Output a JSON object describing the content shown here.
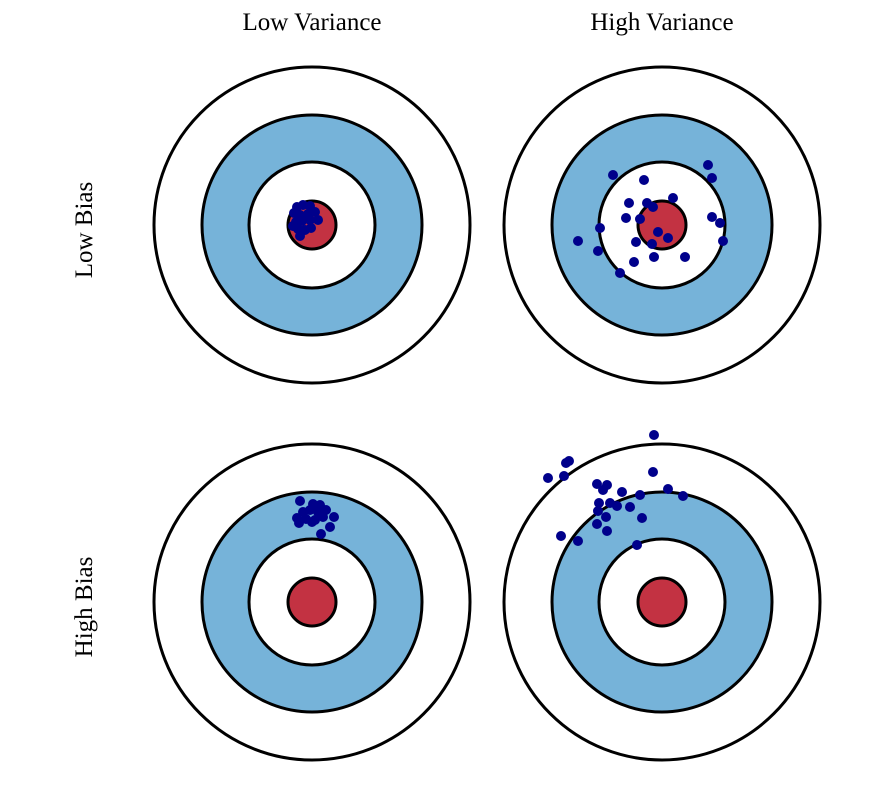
{
  "columns": [
    "Low Variance",
    "High Variance"
  ],
  "rows": [
    "Low Bias",
    "High Bias"
  ]
}
